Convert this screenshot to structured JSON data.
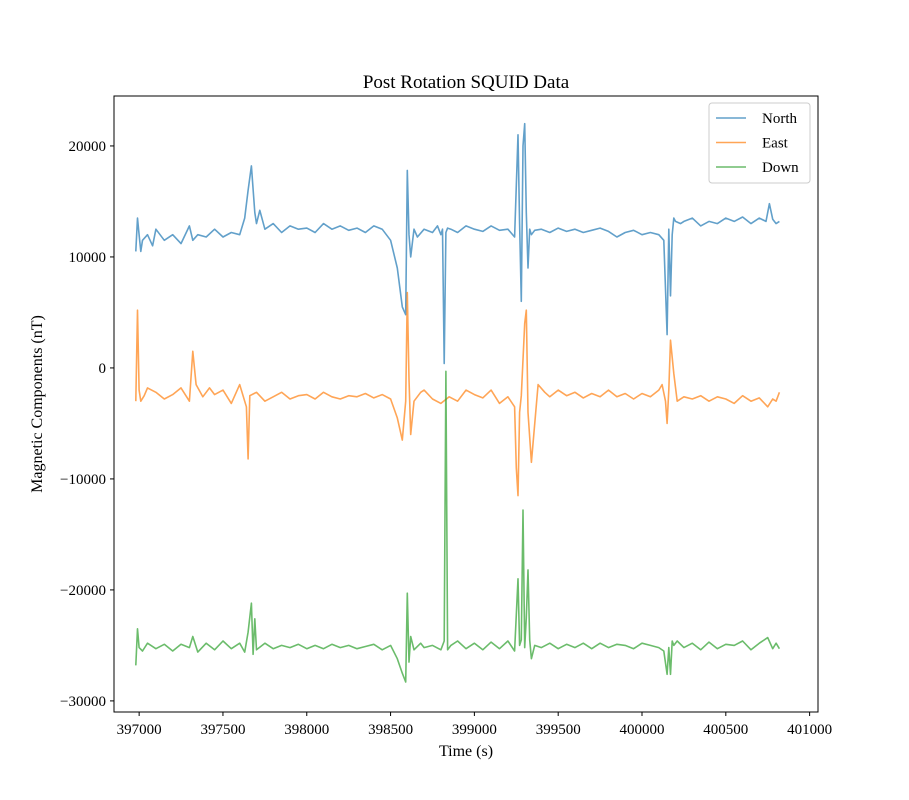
{
  "chart_data": {
    "type": "line",
    "title": "Post Rotation SQUID Data",
    "xlabel": "Time (s)",
    "ylabel": "Magnetic Components (nT)",
    "xlim": [
      396850,
      401050
    ],
    "ylim": [
      -31000,
      24500
    ],
    "xticks": [
      397000,
      397500,
      398000,
      398500,
      399000,
      399500,
      400000,
      400500,
      401000
    ],
    "xtick_labels": [
      "397000",
      "397500",
      "398000",
      "398500",
      "399000",
      "399500",
      "400000",
      "400500",
      "401000"
    ],
    "yticks": [
      20000,
      10000,
      0,
      -10000,
      -20000,
      -30000
    ],
    "ytick_labels": [
      "20000",
      "10000",
      "0",
      "−10000",
      "−20000",
      "−30000"
    ],
    "grid": false,
    "legend_position": "top-right",
    "series": [
      {
        "name": "North",
        "color": "#1f77b4",
        "x": [
          396980,
          396990,
          397000,
          397010,
          397020,
          397050,
          397080,
          397100,
          397150,
          397200,
          397250,
          397300,
          397320,
          397350,
          397400,
          397450,
          397500,
          397550,
          397600,
          397630,
          397650,
          397670,
          397690,
          397700,
          397720,
          397750,
          397800,
          397850,
          397900,
          397950,
          398000,
          398050,
          398100,
          398150,
          398200,
          398250,
          398300,
          398350,
          398400,
          398450,
          398500,
          398540,
          398570,
          398590,
          398600,
          398610,
          398620,
          398640,
          398660,
          398700,
          398750,
          398780,
          398800,
          398810,
          398820,
          398830,
          398840,
          398860,
          398900,
          398950,
          399000,
          399050,
          399100,
          399150,
          399200,
          399240,
          399260,
          399270,
          399280,
          399290,
          399300,
          399310,
          399320,
          399330,
          399340,
          399360,
          399400,
          399450,
          399500,
          399550,
          399600,
          399650,
          399700,
          399750,
          399800,
          399850,
          399900,
          399950,
          400000,
          400050,
          400100,
          400130,
          400150,
          400160,
          400170,
          400180,
          400190,
          400200,
          400230,
          400250,
          400300,
          400350,
          400400,
          400450,
          400500,
          400550,
          400600,
          400650,
          400700,
          400740,
          400760,
          400780,
          400800,
          400820
        ],
        "y": [
          10500,
          13500,
          12000,
          10500,
          11500,
          12000,
          11000,
          12500,
          11500,
          12000,
          11200,
          12800,
          11500,
          12000,
          11800,
          12500,
          11800,
          12200,
          12000,
          13500,
          16000,
          18200,
          14000,
          13000,
          14200,
          12500,
          13000,
          12200,
          12800,
          12500,
          12600,
          12200,
          13000,
          12500,
          12800,
          12400,
          12600,
          12200,
          12800,
          12500,
          11500,
          9000,
          5500,
          4800,
          17800,
          12000,
          10000,
          12500,
          11800,
          12500,
          12200,
          12800,
          12000,
          12500,
          400,
          12200,
          12600,
          12500,
          12200,
          12800,
          12500,
          12300,
          12800,
          12400,
          12500,
          11800,
          21000,
          13000,
          6000,
          20000,
          22000,
          14000,
          9000,
          12500,
          12000,
          12400,
          12500,
          12200,
          12600,
          12300,
          12500,
          12200,
          12400,
          12600,
          12300,
          11800,
          12200,
          12400,
          12000,
          12200,
          12000,
          11500,
          3000,
          12500,
          6500,
          12000,
          13500,
          13200,
          13000,
          13200,
          13500,
          12800,
          13200,
          13000,
          13500,
          13200,
          13600,
          13000,
          13500,
          13200,
          14800,
          13400,
          13000,
          13200
        ]
      },
      {
        "name": "East",
        "color": "#ff7f0e",
        "x": [
          396980,
          396990,
          397000,
          397010,
          397030,
          397050,
          397100,
          397150,
          397200,
          397250,
          397300,
          397320,
          397340,
          397380,
          397420,
          397450,
          397500,
          397550,
          397600,
          397640,
          397650,
          397660,
          397700,
          397750,
          397800,
          397850,
          397900,
          397950,
          398000,
          398050,
          398100,
          398150,
          398200,
          398250,
          398300,
          398350,
          398400,
          398450,
          398500,
          398540,
          398570,
          398590,
          398600,
          398610,
          398620,
          398640,
          398680,
          398700,
          398750,
          398800,
          398850,
          398900,
          398950,
          399000,
          399050,
          399100,
          399150,
          399200,
          399240,
          399250,
          399260,
          399270,
          399280,
          399300,
          399310,
          399320,
          399340,
          399380,
          399420,
          399450,
          399500,
          399550,
          399600,
          399650,
          399700,
          399750,
          399800,
          399850,
          399900,
          399950,
          400000,
          400050,
          400100,
          400120,
          400140,
          400150,
          400160,
          400170,
          400190,
          400210,
          400250,
          400300,
          400350,
          400400,
          400450,
          400500,
          400550,
          400600,
          400650,
          400700,
          400750,
          400780,
          400800,
          400820
        ],
        "y": [
          -3000,
          5200,
          -2000,
          -3000,
          -2500,
          -1800,
          -2200,
          -2800,
          -2400,
          -1800,
          -3000,
          1500,
          -1500,
          -2600,
          -1800,
          -2400,
          -2000,
          -3200,
          -1500,
          -3500,
          -8200,
          -2500,
          -2200,
          -3000,
          -2600,
          -2200,
          -2800,
          -2500,
          -2400,
          -2800,
          -2200,
          -2600,
          -2800,
          -2500,
          -2600,
          -2300,
          -2700,
          -2400,
          -2800,
          -4500,
          -6500,
          -3000,
          6800,
          -1000,
          -6000,
          -3000,
          -2200,
          -2000,
          -2800,
          -3200,
          -2600,
          -3000,
          -2000,
          -2400,
          -2700,
          -2000,
          -3200,
          -2600,
          -3500,
          -9000,
          -11500,
          -4000,
          -2500,
          4000,
          5200,
          -4000,
          -8500,
          -1500,
          -2200,
          -2600,
          -2000,
          -2500,
          -2200,
          -2700,
          -2300,
          -2600,
          -2000,
          -2600,
          -2300,
          -2800,
          -2300,
          -2600,
          -2000,
          -1500,
          -3000,
          -5000,
          -2000,
          2500,
          -500,
          -3000,
          -2600,
          -2800,
          -2500,
          -3000,
          -2600,
          -2800,
          -3200,
          -2500,
          -3000,
          -2700,
          -3500,
          -2800,
          -3000,
          -2200
        ]
      },
      {
        "name": "Down",
        "color": "#2ca02c",
        "x": [
          396980,
          396990,
          397000,
          397020,
          397050,
          397100,
          397150,
          397200,
          397250,
          397300,
          397320,
          397350,
          397400,
          397450,
          397500,
          397550,
          397600,
          397630,
          397650,
          397670,
          397680,
          397690,
          397700,
          397750,
          397800,
          397850,
          397900,
          397950,
          398000,
          398050,
          398100,
          398150,
          398200,
          398250,
          398300,
          398350,
          398400,
          398450,
          398500,
          398540,
          398570,
          398590,
          398600,
          398610,
          398620,
          398640,
          398680,
          398700,
          398750,
          398800,
          398820,
          398830,
          398840,
          398860,
          398900,
          398950,
          399000,
          399050,
          399100,
          399150,
          399200,
          399240,
          399260,
          399270,
          399280,
          399290,
          399300,
          399310,
          399320,
          399330,
          399340,
          399360,
          399400,
          399450,
          399500,
          399550,
          399600,
          399650,
          399700,
          399750,
          399800,
          399850,
          399900,
          399950,
          400000,
          400050,
          400100,
          400130,
          400150,
          400160,
          400170,
          400180,
          400190,
          400210,
          400250,
          400300,
          400350,
          400400,
          400450,
          400500,
          400550,
          400600,
          400650,
          400700,
          400750,
          400780,
          400800,
          400820
        ],
        "y": [
          -26800,
          -23500,
          -25200,
          -25500,
          -24800,
          -25300,
          -24900,
          -25500,
          -24900,
          -25200,
          -24200,
          -25600,
          -24800,
          -25400,
          -24600,
          -25300,
          -24800,
          -25600,
          -23800,
          -21200,
          -25800,
          -22600,
          -25400,
          -24800,
          -25300,
          -25000,
          -25200,
          -24900,
          -25300,
          -25000,
          -25300,
          -24900,
          -25200,
          -25000,
          -25300,
          -25100,
          -24900,
          -25400,
          -25000,
          -26200,
          -27500,
          -28300,
          -20300,
          -26500,
          -24200,
          -25400,
          -24800,
          -25200,
          -25000,
          -25400,
          -24600,
          -300,
          -25400,
          -25000,
          -24600,
          -25300,
          -24800,
          -25400,
          -24700,
          -25300,
          -24600,
          -25500,
          -19000,
          -25000,
          -24500,
          -12800,
          -25200,
          -22500,
          -18200,
          -24500,
          -26200,
          -25000,
          -25200,
          -24800,
          -25300,
          -24900,
          -25200,
          -24800,
          -25300,
          -24800,
          -25200,
          -24900,
          -25000,
          -25300,
          -24800,
          -25000,
          -25200,
          -25500,
          -27600,
          -25200,
          -27600,
          -24600,
          -25000,
          -24600,
          -25200,
          -24800,
          -25400,
          -24700,
          -25300,
          -24900,
          -25000,
          -24600,
          -25400,
          -24800,
          -24300,
          -25300,
          -24800,
          -25300
        ]
      }
    ]
  }
}
